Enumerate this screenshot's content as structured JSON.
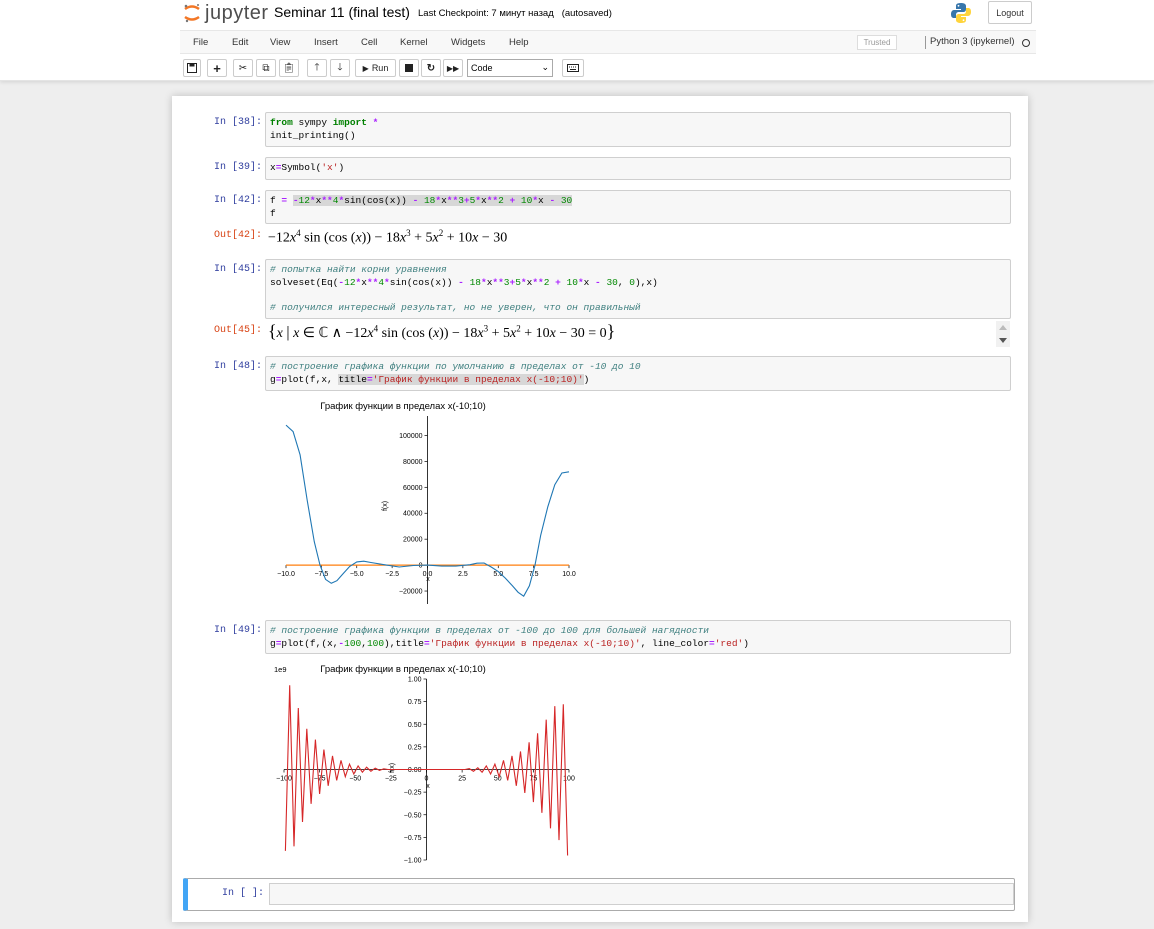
{
  "header": {
    "brand": "jupyter",
    "notebook_title": "Seminar 11 (final test)",
    "checkpoint": "Last Checkpoint: 7 минут назад",
    "autosave": "(autosaved)",
    "logout_label": "Logout"
  },
  "menu": {
    "items": [
      "File",
      "Edit",
      "View",
      "Insert",
      "Cell",
      "Kernel",
      "Widgets",
      "Help"
    ],
    "trusted": "Trusted",
    "kernel": "Python 3 (ipykernel)"
  },
  "toolbar": {
    "run_label": "Run",
    "cell_type": "Code",
    "icons": [
      "save-icon",
      "plus-icon",
      "cut-icon",
      "copy-icon",
      "paste-icon",
      "arrow-up-icon",
      "arrow-down-icon",
      "run-icon",
      "stop-icon",
      "restart-icon",
      "fast-forward-icon",
      "keyboard-icon"
    ]
  },
  "cells": {
    "c38": {
      "prompt": "In [38]:"
    },
    "c39": {
      "prompt": "In [39]:"
    },
    "c42": {
      "prompt": "In [42]:",
      "out_prompt": "Out[42]:"
    },
    "c45": {
      "prompt": "In [45]:",
      "out_prompt": "Out[45]:"
    },
    "c48": {
      "prompt": "In [48]:"
    },
    "c49": {
      "prompt": "In [49]:"
    },
    "empty": {
      "prompt": "In [ ]:"
    }
  },
  "plot1": {
    "title": "График функции в пределах x(-10;10)",
    "ylabel": "f(x)",
    "xlabel": "x",
    "xticks": [
      "−10.0",
      "−7.5",
      "−5.0",
      "−2.5",
      "0.0",
      "2.5",
      "5.0",
      "7.5",
      "10.0"
    ],
    "yticks": [
      "100000",
      "80000",
      "60000",
      "40000",
      "20000",
      "0",
      "−20000"
    ],
    "line_color": "#1f77b4",
    "zero_line_color": "#ff7f0e"
  },
  "plot2": {
    "title": "График функции в пределах x(-10;10)",
    "scale": "1e9",
    "ylabel": "f(x)",
    "xlabel": "x",
    "xticks": [
      "−100",
      "−75",
      "−50",
      "−25",
      "0",
      "25",
      "50",
      "75",
      "100"
    ],
    "yticks": [
      "1.00",
      "0.75",
      "0.50",
      "0.25",
      "0.00",
      "−0.25",
      "−0.50",
      "−0.75",
      "−1.00"
    ],
    "line_color": "#d62728"
  },
  "chart_data": [
    {
      "type": "line",
      "title": "График функции в пределах x(-10;10)",
      "xlabel": "x",
      "ylabel": "f(x)",
      "xlim": [
        -10,
        10
      ],
      "ylim": [
        -30000,
        115000
      ],
      "series": [
        {
          "x": [
            -10,
            -9.5,
            -9,
            -8.5,
            -8,
            -7.6,
            -7.2,
            -6.8,
            -6.4,
            -6,
            -5.5,
            -5,
            -4.5,
            -4,
            -3,
            -2,
            -1,
            0,
            1,
            2,
            3,
            3.5,
            4,
            4.5,
            5,
            5.5,
            6,
            6.4,
            6.8,
            7.2,
            7.6,
            8,
            8.5,
            9,
            9.5,
            10
          ],
          "y": [
            108000,
            103000,
            85000,
            50000,
            18000,
            0,
            -11000,
            -14000,
            -12000,
            -7000,
            -1000,
            2500,
            3000,
            2000,
            200,
            -1500,
            -300,
            -30,
            -800,
            -800,
            300,
            1500,
            1600,
            -1500,
            -5000,
            -10000,
            -16000,
            -21000,
            -24000,
            -16000,
            0,
            23000,
            45000,
            62000,
            71000,
            72000
          ]
        }
      ],
      "grid": false
    },
    {
      "type": "line",
      "title": "График функции в пределах x(-10;10)",
      "xlabel": "x",
      "ylabel": "f(x)",
      "scale_note": "1e9",
      "xlim": [
        -100,
        100
      ],
      "ylim": [
        -1.0,
        1.0
      ],
      "series": [
        {
          "x": [
            -99,
            -96,
            -93,
            -90,
            -87,
            -84,
            -81,
            -78,
            -75,
            -72,
            -69,
            -66,
            -63,
            -60,
            -57,
            -54,
            -51,
            -48,
            -45,
            -42,
            -39,
            -36,
            -33,
            -30,
            -27,
            0,
            27,
            30,
            33,
            36,
            39,
            42,
            45,
            48,
            51,
            54,
            57,
            60,
            63,
            66,
            69,
            72,
            75,
            78,
            81,
            84,
            87,
            90,
            93,
            96,
            99
          ],
          "y": [
            -0.9,
            0.93,
            -0.85,
            0.68,
            -0.58,
            0.45,
            -0.38,
            0.33,
            -0.27,
            0.22,
            -0.18,
            0.15,
            -0.12,
            0.1,
            -0.08,
            0.06,
            -0.05,
            0.04,
            -0.03,
            0.025,
            -0.02,
            0.015,
            -0.01,
            0.008,
            0,
            0,
            0,
            0.01,
            -0.02,
            0.02,
            -0.03,
            0.04,
            -0.05,
            0.06,
            -0.08,
            0.1,
            -0.12,
            0.15,
            -0.18,
            0.2,
            -0.26,
            0.3,
            -0.36,
            0.4,
            -0.48,
            0.55,
            -0.65,
            0.7,
            -0.78,
            0.72,
            -0.95
          ]
        }
      ],
      "grid": false
    }
  ]
}
